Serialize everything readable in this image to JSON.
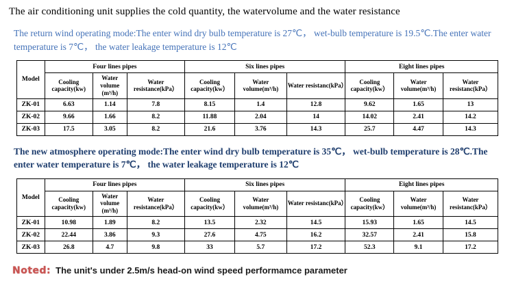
{
  "page": {
    "title": "The air conditioning unit supplies the cold quantity, the watervolume and the water resistance"
  },
  "modes": {
    "return_wind": {
      "description": "The return wind operating mode:The enter wind dry bulb temperature is 27℃， wet-bulb temperature is 19.5℃.The enter water temperature is 7℃， the water leakage temperature is 12℃"
    },
    "new_atmosphere": {
      "description": "The new atmosphere operating mode:The enter wind dry bulb temperature is 35℃， wet-bulb temperature is 28℃.The enter water temperature is 7℃， the water leakage temperature is 12℃"
    }
  },
  "table_headers": {
    "model": "Model",
    "groups": [
      "Four lines pipes",
      "Six lines pipes",
      "Eight lines pipes"
    ],
    "columns": [
      "Cooling capacity(kw)",
      "Water volume (m³/h)",
      "Water resistance(kPa）",
      "Cooling capacity(kw）",
      "Water volume(m³/h)",
      "Water resistanc(kPa）",
      "Cooling capacity(kw）",
      "Water volume(m³/h)",
      "Water resistanc(kPa）"
    ]
  },
  "table1": {
    "rows": [
      [
        "ZK-01",
        "6.63",
        "1.14",
        "7.8",
        "8.15",
        "1.4",
        "12.8",
        "9.62",
        "1.65",
        "13"
      ],
      [
        "ZK-02",
        "9.66",
        "1.66",
        "8.2",
        "11.88",
        "2.04",
        "14",
        "14.02",
        "2.41",
        "14.2"
      ],
      [
        "ZK-03",
        "17.5",
        "3.05",
        "8.2",
        "21.6",
        "3.76",
        "14.3",
        "25.7",
        "4.47",
        "14.3"
      ]
    ]
  },
  "table2": {
    "rows": [
      [
        "ZK-01",
        "10.98",
        "1.89",
        "8.2",
        "13.5",
        "2.32",
        "14.5",
        "15.93",
        "1.65",
        "14.5"
      ],
      [
        "ZK-02",
        "22.44",
        "3.86",
        "9.3",
        "27.6",
        "4.75",
        "16.2",
        "32.57",
        "2.41",
        "15.8"
      ],
      [
        "ZK-03",
        "26.8",
        "4.7",
        "9.8",
        "33",
        "5.7",
        "17.2",
        "52.3",
        "9.1",
        "17.2"
      ]
    ]
  },
  "note": {
    "label": "Noted:",
    "text": "The unit's under 2.5m/s head-on wind speed performamce parameter"
  },
  "colors": {
    "return_wind_text": "#4472b8",
    "new_atmosphere_text": "#1f3e6e",
    "note_label": "#cb5553"
  }
}
